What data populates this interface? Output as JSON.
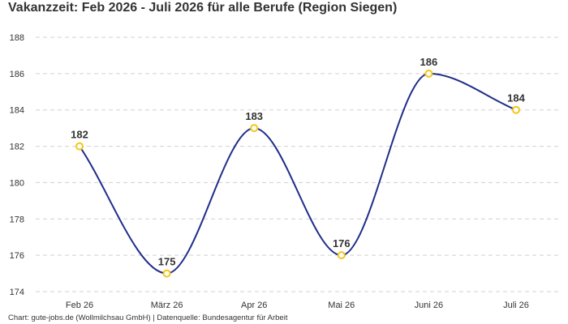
{
  "title": "Vakanzzeit: Feb 2026 - Juli 2026 für alle Berufe (Region Siegen)",
  "source": "Chart: gute-jobs.de (Wollmilchsau GmbH) | Datenquelle: Bundesagentur für Arbeit",
  "colors": {
    "line": "#1f2d8a",
    "point_stroke": "#f5c518",
    "point_fill": "#ffffff",
    "grid": "#d0d0d0",
    "text": "#333333"
  },
  "chart_data": {
    "type": "line",
    "title": "Vakanzzeit: Feb 2026 - Juli 2026 für alle Berufe (Region Siegen)",
    "categories": [
      "Feb 26",
      "März 26",
      "Apr 26",
      "Mai 26",
      "Juni 26",
      "Juli 26"
    ],
    "values": [
      182,
      175,
      183,
      176,
      186,
      184
    ],
    "data_labels": [
      "182",
      "175",
      "183",
      "176",
      "186",
      "184"
    ],
    "xlabel": "",
    "ylabel": "",
    "ylim": [
      174,
      188
    ],
    "yticks": [
      174,
      176,
      178,
      180,
      182,
      184,
      186,
      188
    ],
    "ytick_labels": [
      "174",
      "176",
      "178",
      "180",
      "182",
      "184",
      "186",
      "188"
    ],
    "grid": true,
    "grid_style": "dashed",
    "curve": "smooth",
    "legend": "none"
  }
}
